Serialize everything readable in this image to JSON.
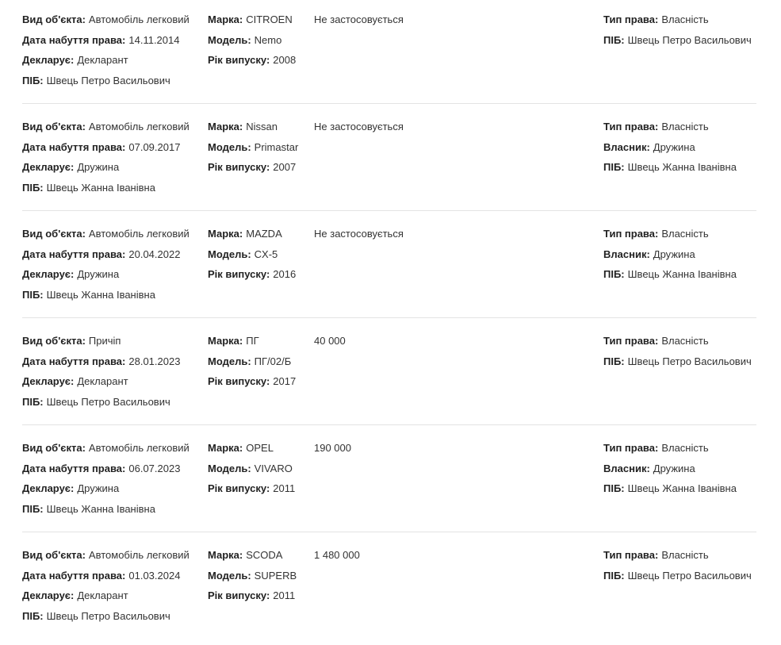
{
  "records": [
    {
      "col1": [
        {
          "label": "Вид об'єкта:",
          "value": "Автомобіль легковий"
        },
        {
          "label": "Дата набуття права:",
          "value": "14.11.2014"
        },
        {
          "label": "Декларує:",
          "value": "Декларант"
        },
        {
          "label": "ПІБ:",
          "value": "Швець Петро Васильович"
        }
      ],
      "col2": [
        {
          "label": "Марка:",
          "value": "CITROEN"
        },
        {
          "label": "Модель:",
          "value": "Nemo"
        },
        {
          "label": "Рік випуску:",
          "value": "2008"
        }
      ],
      "price": "Не застосовується",
      "col4": [
        {
          "label": "Тип права:",
          "value": "Власність"
        },
        {
          "label": "ПІБ:",
          "value": "Швець Петро Васильович"
        }
      ]
    },
    {
      "col1": [
        {
          "label": "Вид об'єкта:",
          "value": "Автомобіль легковий"
        },
        {
          "label": "Дата набуття права:",
          "value": "07.09.2017"
        },
        {
          "label": "Декларує:",
          "value": "Дружина"
        },
        {
          "label": "ПІБ:",
          "value": "Швець Жанна Іванівна"
        }
      ],
      "col2": [
        {
          "label": "Марка:",
          "value": "Nissan"
        },
        {
          "label": "Модель:",
          "value": "Primastar"
        },
        {
          "label": "Рік випуску:",
          "value": "2007"
        }
      ],
      "price": "Не застосовується",
      "col4": [
        {
          "label": "Тип права:",
          "value": "Власність"
        },
        {
          "label": "Власник:",
          "value": "Дружина"
        },
        {
          "label": "ПІБ:",
          "value": "Швець Жанна Іванівна"
        }
      ]
    },
    {
      "col1": [
        {
          "label": "Вид об'єкта:",
          "value": "Автомобіль легковий"
        },
        {
          "label": "Дата набуття права:",
          "value": "20.04.2022"
        },
        {
          "label": "Декларує:",
          "value": "Дружина"
        },
        {
          "label": "ПІБ:",
          "value": "Швець Жанна Іванівна"
        }
      ],
      "col2": [
        {
          "label": "Марка:",
          "value": "MAZDA"
        },
        {
          "label": "Модель:",
          "value": "CX-5"
        },
        {
          "label": "Рік випуску:",
          "value": "2016"
        }
      ],
      "price": "Не застосовується",
      "col4": [
        {
          "label": "Тип права:",
          "value": "Власність"
        },
        {
          "label": "Власник:",
          "value": "Дружина"
        },
        {
          "label": "ПІБ:",
          "value": "Швець Жанна Іванівна"
        }
      ]
    },
    {
      "col1": [
        {
          "label": "Вид об'єкта:",
          "value": "Причіп"
        },
        {
          "label": "Дата набуття права:",
          "value": "28.01.2023"
        },
        {
          "label": "Декларує:",
          "value": "Декларант"
        },
        {
          "label": "ПІБ:",
          "value": "Швець Петро Васильович"
        }
      ],
      "col2": [
        {
          "label": "Марка:",
          "value": "ПГ"
        },
        {
          "label": "Модель:",
          "value": "ПГ/02/Б"
        },
        {
          "label": "Рік випуску:",
          "value": "2017"
        }
      ],
      "price": "40 000",
      "col4": [
        {
          "label": "Тип права:",
          "value": "Власність"
        },
        {
          "label": "ПІБ:",
          "value": "Швець Петро Васильович"
        }
      ]
    },
    {
      "col1": [
        {
          "label": "Вид об'єкта:",
          "value": "Автомобіль легковий"
        },
        {
          "label": "Дата набуття права:",
          "value": "06.07.2023"
        },
        {
          "label": "Декларує:",
          "value": "Дружина"
        },
        {
          "label": "ПІБ:",
          "value": "Швець Жанна Іванівна"
        }
      ],
      "col2": [
        {
          "label": "Марка:",
          "value": "OPEL"
        },
        {
          "label": "Модель:",
          "value": "VIVARO"
        },
        {
          "label": "Рік випуску:",
          "value": "2011"
        }
      ],
      "price": "190 000",
      "col4": [
        {
          "label": "Тип права:",
          "value": "Власність"
        },
        {
          "label": "Власник:",
          "value": "Дружина"
        },
        {
          "label": "ПІБ:",
          "value": "Швець Жанна Іванівна"
        }
      ]
    },
    {
      "col1": [
        {
          "label": "Вид об'єкта:",
          "value": "Автомобіль легковий"
        },
        {
          "label": "Дата набуття права:",
          "value": "01.03.2024"
        },
        {
          "label": "Декларує:",
          "value": "Декларант"
        },
        {
          "label": "ПІБ:",
          "value": "Швець Петро Васильович"
        }
      ],
      "col2": [
        {
          "label": "Марка:",
          "value": "SCODA"
        },
        {
          "label": "Модель:",
          "value": "SUPERB"
        },
        {
          "label": "Рік випуску:",
          "value": "2011"
        }
      ],
      "price": "1 480 000",
      "col4": [
        {
          "label": "Тип права:",
          "value": "Власність"
        },
        {
          "label": "ПІБ:",
          "value": "Швець Петро Васильович"
        }
      ]
    }
  ]
}
